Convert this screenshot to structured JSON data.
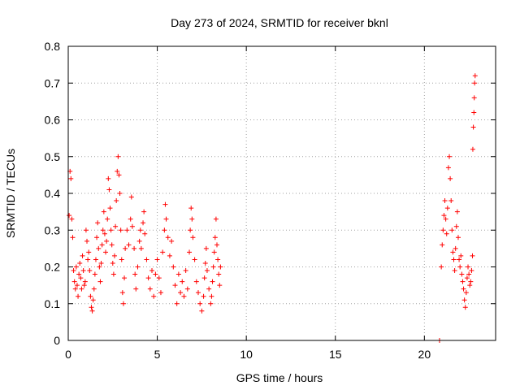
{
  "chart_data": {
    "type": "scatter",
    "title": "Day 273 of 2024, SRMTID for receiver bknl",
    "xlabel": "GPS time / hours",
    "ylabel": "SRMTID / TECUs",
    "xlim": [
      0,
      24
    ],
    "ylim": [
      0,
      0.8
    ],
    "grid": true,
    "marker": "+",
    "color": "#ff0000",
    "x_ticks": [
      0,
      5,
      10,
      15,
      20
    ],
    "x_tick_labels": [
      "0",
      "5",
      "10",
      "15",
      "20"
    ],
    "y_ticks": [
      0,
      0.1,
      0.2,
      0.3,
      0.4,
      0.5,
      0.6,
      0.7,
      0.8
    ],
    "y_tick_labels": [
      "0",
      "0.1",
      "0.2",
      "0.3",
      "0.4",
      "0.5",
      "0.6",
      "0.7",
      "0.8"
    ],
    "series": [
      {
        "name": "SRMTID",
        "points": [
          [
            0.05,
            0.34
          ],
          [
            0.1,
            0.46
          ],
          [
            0.15,
            0.44
          ],
          [
            0.2,
            0.33
          ],
          [
            0.25,
            0.28
          ],
          [
            0.3,
            0.19
          ],
          [
            0.35,
            0.16
          ],
          [
            0.4,
            0.14
          ],
          [
            0.45,
            0.2
          ],
          [
            0.5,
            0.15
          ],
          [
            0.55,
            0.12
          ],
          [
            0.6,
            0.18
          ],
          [
            0.65,
            0.21
          ],
          [
            0.7,
            0.17
          ],
          [
            0.75,
            0.14
          ],
          [
            0.8,
            0.23
          ],
          [
            0.85,
            0.19
          ],
          [
            0.9,
            0.15
          ],
          [
            0.95,
            0.16
          ],
          [
            1.0,
            0.3
          ],
          [
            1.05,
            0.27
          ],
          [
            1.1,
            0.22
          ],
          [
            1.15,
            0.24
          ],
          [
            1.2,
            0.19
          ],
          [
            1.25,
            0.12
          ],
          [
            1.3,
            0.09
          ],
          [
            1.35,
            0.08
          ],
          [
            1.4,
            0.11
          ],
          [
            1.45,
            0.14
          ],
          [
            1.5,
            0.18
          ],
          [
            1.55,
            0.22
          ],
          [
            1.6,
            0.28
          ],
          [
            1.65,
            0.32
          ],
          [
            1.7,
            0.25
          ],
          [
            1.75,
            0.2
          ],
          [
            1.8,
            0.16
          ],
          [
            1.85,
            0.21
          ],
          [
            1.9,
            0.26
          ],
          [
            1.95,
            0.3
          ],
          [
            2.0,
            0.35
          ],
          [
            2.05,
            0.29
          ],
          [
            2.1,
            0.24
          ],
          [
            2.15,
            0.27
          ],
          [
            2.2,
            0.33
          ],
          [
            2.25,
            0.44
          ],
          [
            2.3,
            0.41
          ],
          [
            2.35,
            0.36
          ],
          [
            2.4,
            0.3
          ],
          [
            2.45,
            0.26
          ],
          [
            2.5,
            0.21
          ],
          [
            2.55,
            0.18
          ],
          [
            2.6,
            0.23
          ],
          [
            2.65,
            0.31
          ],
          [
            2.7,
            0.38
          ],
          [
            2.75,
            0.46
          ],
          [
            2.8,
            0.5
          ],
          [
            2.85,
            0.45
          ],
          [
            2.9,
            0.4
          ],
          [
            2.95,
            0.3
          ],
          [
            3.0,
            0.22
          ],
          [
            3.05,
            0.13
          ],
          [
            3.1,
            0.1
          ],
          [
            3.15,
            0.17
          ],
          [
            3.2,
            0.25
          ],
          [
            3.3,
            0.3
          ],
          [
            3.4,
            0.26
          ],
          [
            3.5,
            0.33
          ],
          [
            3.55,
            0.39
          ],
          [
            3.6,
            0.31
          ],
          [
            3.7,
            0.25
          ],
          [
            3.75,
            0.18
          ],
          [
            3.8,
            0.14
          ],
          [
            3.9,
            0.2
          ],
          [
            4.0,
            0.27
          ],
          [
            4.05,
            0.3
          ],
          [
            4.1,
            0.25
          ],
          [
            4.2,
            0.32
          ],
          [
            4.25,
            0.35
          ],
          [
            4.3,
            0.29
          ],
          [
            4.4,
            0.22
          ],
          [
            4.5,
            0.17
          ],
          [
            4.6,
            0.14
          ],
          [
            4.7,
            0.19
          ],
          [
            4.8,
            0.12
          ],
          [
            4.9,
            0.18
          ],
          [
            5.0,
            0.22
          ],
          [
            5.1,
            0.17
          ],
          [
            5.2,
            0.13
          ],
          [
            5.3,
            0.24
          ],
          [
            5.4,
            0.3
          ],
          [
            5.45,
            0.37
          ],
          [
            5.5,
            0.33
          ],
          [
            5.6,
            0.28
          ],
          [
            5.7,
            0.23
          ],
          [
            5.8,
            0.27
          ],
          [
            5.9,
            0.2
          ],
          [
            6.0,
            0.15
          ],
          [
            6.1,
            0.1
          ],
          [
            6.2,
            0.18
          ],
          [
            6.3,
            0.13
          ],
          [
            6.4,
            0.16
          ],
          [
            6.5,
            0.12
          ],
          [
            6.6,
            0.19
          ],
          [
            6.7,
            0.14
          ],
          [
            6.8,
            0.24
          ],
          [
            6.85,
            0.3
          ],
          [
            6.9,
            0.36
          ],
          [
            6.95,
            0.33
          ],
          [
            7.0,
            0.28
          ],
          [
            7.1,
            0.22
          ],
          [
            7.2,
            0.16
          ],
          [
            7.3,
            0.13
          ],
          [
            7.4,
            0.1
          ],
          [
            7.5,
            0.08
          ],
          [
            7.6,
            0.12
          ],
          [
            7.65,
            0.17
          ],
          [
            7.7,
            0.21
          ],
          [
            7.75,
            0.25
          ],
          [
            7.8,
            0.19
          ],
          [
            7.9,
            0.14
          ],
          [
            8.0,
            0.1
          ],
          [
            8.05,
            0.12
          ],
          [
            8.1,
            0.16
          ],
          [
            8.15,
            0.2
          ],
          [
            8.2,
            0.24
          ],
          [
            8.25,
            0.28
          ],
          [
            8.3,
            0.33
          ],
          [
            8.35,
            0.26
          ],
          [
            8.4,
            0.22
          ],
          [
            8.45,
            0.18
          ],
          [
            8.5,
            0.15
          ],
          [
            8.55,
            0.2
          ],
          [
            20.85,
            0.0
          ],
          [
            20.95,
            0.2
          ],
          [
            21.0,
            0.26
          ],
          [
            21.05,
            0.3
          ],
          [
            21.1,
            0.34
          ],
          [
            21.15,
            0.38
          ],
          [
            21.2,
            0.33
          ],
          [
            21.25,
            0.29
          ],
          [
            21.3,
            0.36
          ],
          [
            21.35,
            0.47
          ],
          [
            21.4,
            0.5
          ],
          [
            21.45,
            0.44
          ],
          [
            21.5,
            0.38
          ],
          [
            21.55,
            0.3
          ],
          [
            21.6,
            0.24
          ],
          [
            21.65,
            0.22
          ],
          [
            21.7,
            0.19
          ],
          [
            21.75,
            0.25
          ],
          [
            21.8,
            0.31
          ],
          [
            21.85,
            0.35
          ],
          [
            21.9,
            0.28
          ],
          [
            21.95,
            0.22
          ],
          [
            22.0,
            0.2
          ],
          [
            22.05,
            0.23
          ],
          [
            22.1,
            0.18
          ],
          [
            22.15,
            0.16
          ],
          [
            22.2,
            0.14
          ],
          [
            22.25,
            0.11
          ],
          [
            22.3,
            0.09
          ],
          [
            22.35,
            0.13
          ],
          [
            22.4,
            0.17
          ],
          [
            22.45,
            0.2
          ],
          [
            22.5,
            0.18
          ],
          [
            22.55,
            0.15
          ],
          [
            22.6,
            0.16
          ],
          [
            22.65,
            0.19
          ],
          [
            22.7,
            0.23
          ],
          [
            22.72,
            0.52
          ],
          [
            22.75,
            0.58
          ],
          [
            22.78,
            0.62
          ],
          [
            22.8,
            0.66
          ],
          [
            22.82,
            0.7
          ],
          [
            22.85,
            0.72
          ]
        ]
      }
    ]
  }
}
